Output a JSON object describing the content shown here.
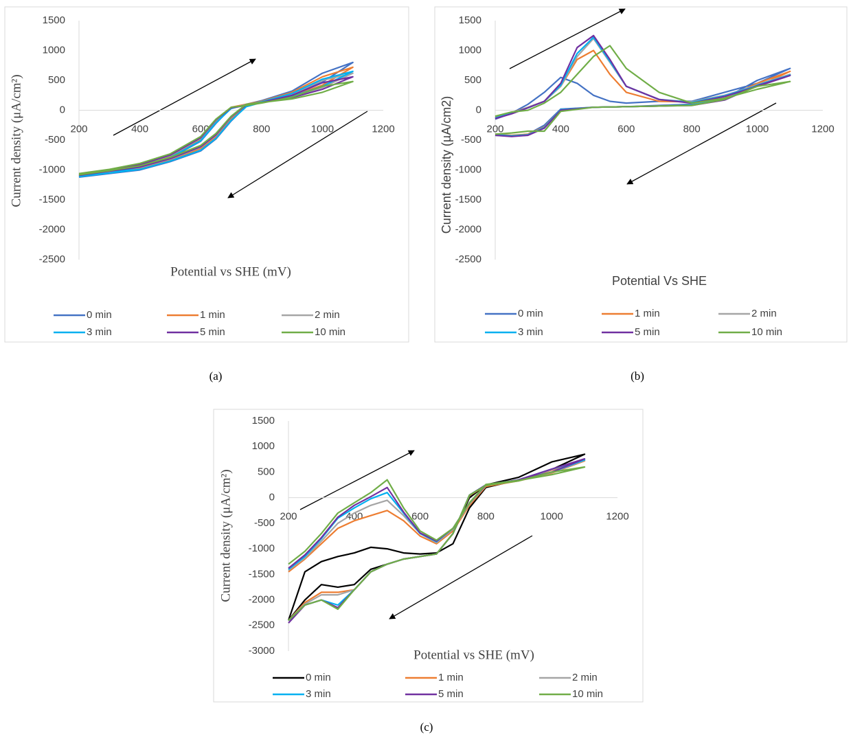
{
  "chart_data": [
    {
      "type": "line",
      "caption": "(a)",
      "xlabel": "Potential vs SHE (mV)",
      "ylabel": "Current density (μA/cm²)",
      "x": [
        200,
        300,
        400,
        500,
        600,
        650,
        700,
        750,
        800,
        900,
        1000,
        1100,
        1000,
        900,
        800,
        750,
        700,
        650,
        600,
        500,
        400,
        300,
        200
      ],
      "xlim": [
        200,
        1200
      ],
      "xticks": [
        200,
        400,
        600,
        800,
        1000,
        1200
      ],
      "ylim": [
        -2500,
        1500
      ],
      "yticks": [
        -2500,
        -2000,
        -1500,
        -1000,
        -500,
        0,
        500,
        1000,
        1500
      ],
      "series": [
        {
          "name": "0 min",
          "color": "#4472c4",
          "values": [
            -1120,
            -1060,
            -1000,
            -860,
            -680,
            -480,
            -180,
            70,
            150,
            260,
            470,
            800,
            620,
            320,
            160,
            100,
            40,
            -220,
            -520,
            -800,
            -960,
            -1060,
            -1110
          ]
        },
        {
          "name": "1 min",
          "color": "#ed7d31",
          "values": [
            -1100,
            -1040,
            -980,
            -840,
            -640,
            -440,
            -140,
            80,
            140,
            240,
            420,
            720,
            560,
            300,
            150,
            100,
            50,
            -190,
            -490,
            -780,
            -940,
            -1040,
            -1090
          ]
        },
        {
          "name": "2 min",
          "color": "#a5a5a5",
          "values": [
            -1090,
            -1030,
            -960,
            -820,
            -620,
            -420,
            -120,
            90,
            140,
            220,
            380,
            620,
            500,
            270,
            140,
            90,
            40,
            -170,
            -470,
            -760,
            -920,
            -1020,
            -1080
          ]
        },
        {
          "name": "3 min",
          "color": "#00b0f0",
          "values": [
            -1110,
            -1050,
            -990,
            -850,
            -670,
            -470,
            -170,
            60,
            130,
            230,
            400,
            650,
            520,
            280,
            140,
            90,
            30,
            -210,
            -510,
            -790,
            -950,
            -1050,
            -1100
          ]
        },
        {
          "name": "5 min",
          "color": "#7030a0",
          "values": [
            -1090,
            -1020,
            -950,
            -810,
            -610,
            -410,
            -110,
            90,
            130,
            210,
            350,
            560,
            460,
            250,
            130,
            80,
            40,
            -160,
            -460,
            -750,
            -910,
            -1010,
            -1070
          ]
        },
        {
          "name": "10 min",
          "color": "#70ad47",
          "values": [
            -1080,
            -1010,
            -930,
            -790,
            -590,
            -390,
            -100,
            100,
            130,
            190,
            300,
            480,
            400,
            220,
            120,
            80,
            50,
            -150,
            -440,
            -730,
            -890,
            -990,
            -1060
          ]
        }
      ]
    },
    {
      "type": "line",
      "caption": "(b)",
      "xlabel": "Potential Vs SHE",
      "ylabel": "Current density (µA/cm2)",
      "x": [
        200,
        250,
        300,
        350,
        400,
        450,
        500,
        550,
        600,
        700,
        800,
        900,
        1000,
        1100,
        1000,
        900,
        800,
        700,
        600,
        500,
        400,
        350,
        300,
        250,
        200
      ],
      "xlim": [
        200,
        1200
      ],
      "xticks": [
        200,
        400,
        600,
        800,
        1000,
        1200
      ],
      "ylim": [
        -2500,
        1500
      ],
      "yticks": [
        -2500,
        -2000,
        -1500,
        -1000,
        -500,
        0,
        500,
        1000,
        1500
      ],
      "series": [
        {
          "name": "0 min",
          "color": "#4472c4",
          "values": [
            -150,
            -50,
            100,
            300,
            550,
            450,
            250,
            150,
            120,
            150,
            150,
            300,
            450,
            700,
            500,
            200,
            100,
            80,
            60,
            50,
            20,
            -250,
            -400,
            -430,
            -420
          ]
        },
        {
          "name": "1 min",
          "color": "#ed7d31",
          "values": [
            -120,
            -40,
            50,
            150,
            400,
            850,
            1000,
            600,
            300,
            150,
            140,
            250,
            400,
            650,
            450,
            200,
            90,
            70,
            60,
            50,
            10,
            -280,
            -400,
            -420,
            -400
          ]
        },
        {
          "name": "2 min",
          "color": "#a5a5a5",
          "values": [
            -130,
            -50,
            50,
            150,
            400,
            900,
            1200,
            800,
            400,
            180,
            140,
            250,
            420,
            600,
            430,
            190,
            90,
            70,
            60,
            50,
            10,
            -290,
            -410,
            -430,
            -410
          ]
        },
        {
          "name": "3 min",
          "color": "#00b0f0",
          "values": [
            -130,
            -50,
            40,
            150,
            420,
            950,
            1220,
            820,
            400,
            180,
            130,
            240,
            410,
            590,
            420,
            180,
            90,
            70,
            60,
            50,
            10,
            -290,
            -410,
            -430,
            -410
          ]
        },
        {
          "name": "5 min",
          "color": "#7030a0",
          "values": [
            -140,
            -60,
            40,
            150,
            450,
            1050,
            1250,
            850,
            400,
            180,
            120,
            230,
            400,
            580,
            410,
            170,
            80,
            70,
            60,
            50,
            0,
            -300,
            -420,
            -440,
            -420
          ]
        },
        {
          "name": "10 min",
          "color": "#70ad47",
          "values": [
            -100,
            -30,
            0,
            120,
            300,
            600,
            900,
            1080,
            700,
            300,
            120,
            200,
            350,
            480,
            400,
            180,
            80,
            70,
            60,
            50,
            -20,
            -350,
            -350,
            -380,
            -400
          ]
        }
      ]
    },
    {
      "type": "line",
      "caption": "(c)",
      "xlabel": "Potential vs SHE (mV)",
      "ylabel": "Current density (μA/cm²)",
      "x": [
        200,
        250,
        300,
        350,
        400,
        450,
        500,
        550,
        600,
        650,
        700,
        750,
        800,
        900,
        1000,
        1100,
        1000,
        900,
        800,
        750,
        700,
        650,
        600,
        550,
        500,
        450,
        400,
        350,
        300,
        250,
        200
      ],
      "xlim": [
        200,
        1200
      ],
      "xticks": [
        200,
        400,
        600,
        800,
        1000,
        1200
      ],
      "ylim": [
        -3000,
        1500
      ],
      "yticks": [
        -3000,
        -2500,
        -2000,
        -1500,
        -1000,
        -500,
        0,
        500,
        1000,
        1500
      ],
      "series": [
        {
          "name": "0 min",
          "color": "#000000",
          "values": [
            -2400,
            -1450,
            -1250,
            -1150,
            -1080,
            -970,
            -1000,
            -1080,
            -1100,
            -1080,
            -900,
            -200,
            200,
            350,
            550,
            850,
            700,
            400,
            250,
            0,
            -700,
            -1100,
            -1150,
            -1200,
            -1300,
            -1400,
            -1700,
            -1750,
            -1700,
            -2000,
            -2400
          ]
        },
        {
          "name": "1 min",
          "color": "#ed7d31",
          "values": [
            -1450,
            -1200,
            -900,
            -600,
            -450,
            -350,
            -250,
            -450,
            -750,
            -900,
            -650,
            -150,
            220,
            330,
            480,
            720,
            540,
            340,
            240,
            40,
            -700,
            -1100,
            -1150,
            -1200,
            -1300,
            -1450,
            -1800,
            -1850,
            -1850,
            -2050,
            -2400
          ]
        },
        {
          "name": "2 min",
          "color": "#a5a5a5",
          "values": [
            -1420,
            -1180,
            -850,
            -500,
            -300,
            -150,
            -50,
            -350,
            -700,
            -880,
            -620,
            -120,
            240,
            340,
            490,
            730,
            550,
            340,
            250,
            50,
            -700,
            -1100,
            -1150,
            -1200,
            -1300,
            -1450,
            -1800,
            -1900,
            -1900,
            -2080,
            -2400
          ]
        },
        {
          "name": "3 min",
          "color": "#00b0f0",
          "values": [
            -1400,
            -1150,
            -800,
            -400,
            -200,
            -20,
            100,
            -300,
            -700,
            -860,
            -600,
            -100,
            250,
            350,
            500,
            740,
            560,
            350,
            250,
            50,
            -700,
            -1100,
            -1150,
            -1200,
            -1300,
            -1450,
            -1800,
            -2100,
            -2000,
            -2100,
            -2400
          ]
        },
        {
          "name": "5 min",
          "color": "#7030a0",
          "values": [
            -1380,
            -1120,
            -780,
            -380,
            -150,
            20,
            200,
            -280,
            -690,
            -850,
            -600,
            -100,
            250,
            350,
            500,
            760,
            560,
            350,
            250,
            50,
            -700,
            -1100,
            -1150,
            -1200,
            -1300,
            -1450,
            -1800,
            -2150,
            -2000,
            -2100,
            -2450
          ]
        },
        {
          "name": "10 min",
          "color": "#70ad47",
          "values": [
            -1300,
            -1050,
            -700,
            -300,
            -100,
            100,
            350,
            -200,
            -650,
            -830,
            -600,
            -100,
            260,
            340,
            450,
            600,
            500,
            330,
            240,
            50,
            -700,
            -1100,
            -1150,
            -1200,
            -1300,
            -1450,
            -1800,
            -2180,
            -2000,
            -2100,
            -2400
          ]
        }
      ]
    }
  ]
}
